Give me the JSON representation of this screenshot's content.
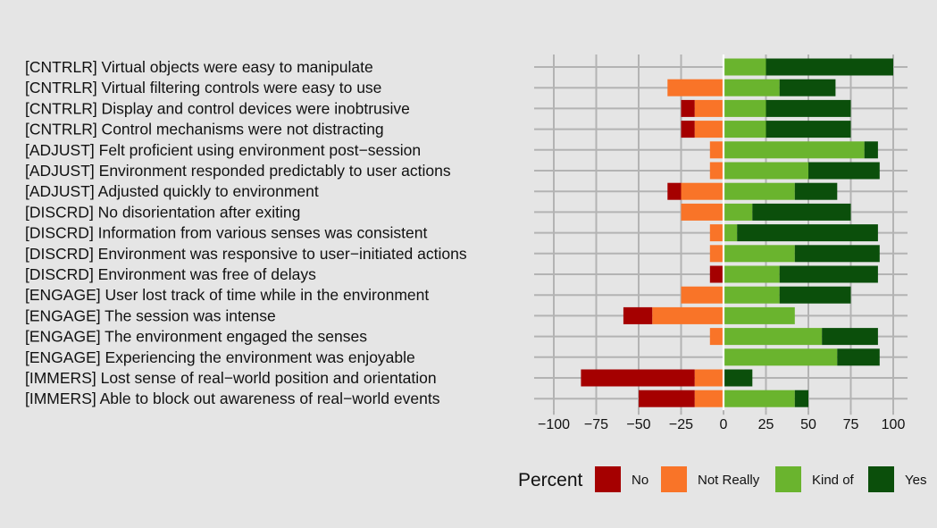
{
  "chart_data": {
    "type": "bar",
    "orientation": "horizontal",
    "stacking": "diverging",
    "categories": [
      "[CNTRLR] Virtual objects were easy to manipulate",
      "[CNTRLR] Virtual filtering controls were easy to use",
      "[CNTRLR] Display and control devices were inobtrusive",
      "[CNTRLR] Control mechanisms were not distracting",
      "[ADJUST] Felt proficient using environment post−session",
      "[ADJUST] Environment responded predictably to user actions",
      "[ADJUST] Adjusted quickly to environment",
      "[DISCRD] No disorientation after exiting",
      "[DISCRD] Information from various senses was consistent",
      "[DISCRD] Environment was responsive to user−initiated actions",
      "[DISCRD] Environment was free of delays",
      "[ENGAGE] User lost track of time while in the environment",
      "[ENGAGE] The session was intense",
      "[ENGAGE] The environment engaged the senses",
      "[ENGAGE] Experiencing the environment was enjoyable",
      "[IMMERS] Lost sense of real−world position and orientation",
      "[IMMERS] Able to block out awareness of real−world events"
    ],
    "series": [
      {
        "name": "No",
        "color": "#a50000",
        "values": [
          0,
          0,
          8,
          8,
          0,
          0,
          8,
          0,
          0,
          0,
          8,
          0,
          17,
          0,
          0,
          67,
          33
        ]
      },
      {
        "name": "Not Really",
        "color": "#f97428",
        "values": [
          0,
          33,
          17,
          17,
          8,
          8,
          25,
          25,
          8,
          8,
          0,
          25,
          42,
          8,
          0,
          17,
          17
        ]
      },
      {
        "name": "Kind of",
        "color": "#6ab42e",
        "values": [
          25,
          33,
          25,
          25,
          83,
          50,
          42,
          17,
          8,
          42,
          33,
          33,
          42,
          58,
          67,
          0,
          42
        ]
      },
      {
        "name": "Yes",
        "color": "#0b4f0b",
        "values": [
          75,
          33,
          50,
          50,
          8,
          42,
          25,
          58,
          83,
          50,
          58,
          42,
          0,
          33,
          25,
          17,
          8
        ]
      }
    ],
    "negative_series": [
      "No",
      "Not Really"
    ],
    "positive_series": [
      "Kind of",
      "Yes"
    ],
    "xlim": [
      -100,
      100
    ],
    "xticks": [
      -100,
      -75,
      -50,
      -25,
      0,
      25,
      50,
      75,
      100
    ],
    "xtick_labels": [
      "−100",
      "−75",
      "−50",
      "−25",
      "0",
      "25",
      "50",
      "75",
      "100"
    ],
    "title": "",
    "xlabel": "",
    "ylabel": "",
    "grid": true,
    "legend": {
      "title": "Percent",
      "placement": "bottom-right",
      "entries": [
        "No",
        "Not Really",
        "Kind of",
        "Yes"
      ]
    },
    "colors": {
      "background": "#e5e5e5",
      "grid": "#b3b3b3",
      "zero_line": "#ffffff"
    }
  }
}
